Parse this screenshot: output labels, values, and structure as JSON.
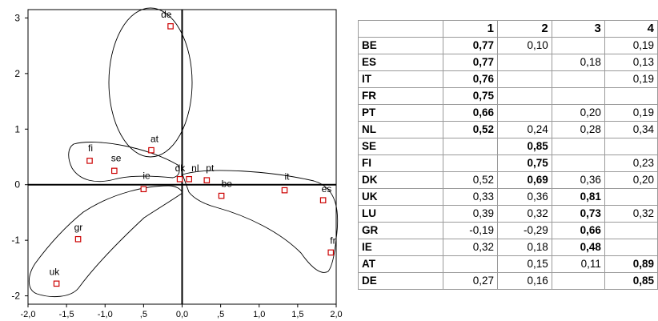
{
  "chart_data": {
    "type": "scatter",
    "title": "",
    "xlabel": "",
    "ylabel": "",
    "xlim": [
      -2.0,
      2.0
    ],
    "ylim": [
      -2.15,
      3.15
    ],
    "x_ticks": [
      -2.0,
      -1.5,
      -1.0,
      -0.5,
      0.0,
      0.5,
      1.0,
      1.5,
      2.0
    ],
    "x_tick_labels": [
      "-2,0",
      "-1,5",
      "-1,0",
      ",5",
      "0,0",
      ",5",
      "1,0",
      "1,5",
      "2,0"
    ],
    "y_ticks": [
      -2,
      -1,
      0,
      1,
      2,
      3
    ],
    "y_tick_labels": [
      "-2",
      "-1",
      "0",
      "1",
      "2",
      "3"
    ],
    "marker_color": "#cc0000",
    "points": [
      {
        "label": "de",
        "x": -0.15,
        "y": 2.85
      },
      {
        "label": "at",
        "x": -0.4,
        "y": 0.62
      },
      {
        "label": "fi",
        "x": -1.2,
        "y": 0.43
      },
      {
        "label": "se",
        "x": -0.88,
        "y": 0.25
      },
      {
        "label": "ie",
        "x": -0.5,
        "y": -0.08
      },
      {
        "label": "dk",
        "x": -0.03,
        "y": 0.1
      },
      {
        "label": "nl",
        "x": 0.09,
        "y": 0.1
      },
      {
        "label": "pt",
        "x": 0.32,
        "y": 0.08
      },
      {
        "label": "be",
        "x": 0.51,
        "y": -0.2
      },
      {
        "label": "it",
        "x": 1.33,
        "y": -0.1
      },
      {
        "label": "es",
        "x": 1.83,
        "y": -0.28
      },
      {
        "label": "fr",
        "x": 1.93,
        "y": -1.22
      },
      {
        "label": "gr",
        "x": -1.35,
        "y": -0.98
      },
      {
        "label": "uk",
        "x": -1.63,
        "y": -1.78
      }
    ]
  },
  "table": {
    "columns": [
      "",
      "1",
      "2",
      "3",
      "4"
    ],
    "rows": [
      {
        "label": "BE",
        "cells": [
          {
            "v": "0,77",
            "b": true
          },
          {
            "v": "0,10",
            "b": false
          },
          {
            "v": "",
            "b": false
          },
          {
            "v": "0,19",
            "b": false
          }
        ]
      },
      {
        "label": "ES",
        "cells": [
          {
            "v": "0,77",
            "b": true
          },
          {
            "v": "",
            "b": false
          },
          {
            "v": "0,18",
            "b": false
          },
          {
            "v": "0,13",
            "b": false
          }
        ]
      },
      {
        "label": "IT",
        "cells": [
          {
            "v": "0,76",
            "b": true
          },
          {
            "v": "",
            "b": false
          },
          {
            "v": "",
            "b": false
          },
          {
            "v": "0,19",
            "b": false
          }
        ]
      },
      {
        "label": "FR",
        "cells": [
          {
            "v": "0,75",
            "b": true
          },
          {
            "v": "",
            "b": false
          },
          {
            "v": "",
            "b": false
          },
          {
            "v": "",
            "b": false
          }
        ]
      },
      {
        "label": "PT",
        "cells": [
          {
            "v": "0,66",
            "b": true
          },
          {
            "v": "",
            "b": false
          },
          {
            "v": "0,20",
            "b": false
          },
          {
            "v": "0,19",
            "b": false
          }
        ]
      },
      {
        "label": "NL",
        "cells": [
          {
            "v": "0,52",
            "b": true
          },
          {
            "v": "0,24",
            "b": false
          },
          {
            "v": "0,28",
            "b": false
          },
          {
            "v": "0,34",
            "b": false
          }
        ]
      },
      {
        "label": "SE",
        "cells": [
          {
            "v": "",
            "b": false
          },
          {
            "v": "0,85",
            "b": true
          },
          {
            "v": "",
            "b": false
          },
          {
            "v": "",
            "b": false
          }
        ]
      },
      {
        "label": "FI",
        "cells": [
          {
            "v": "",
            "b": false
          },
          {
            "v": "0,75",
            "b": true
          },
          {
            "v": "",
            "b": false
          },
          {
            "v": "0,23",
            "b": false
          }
        ]
      },
      {
        "label": "DK",
        "cells": [
          {
            "v": "0,52",
            "b": false
          },
          {
            "v": "0,69",
            "b": true
          },
          {
            "v": "0,36",
            "b": false
          },
          {
            "v": "0,20",
            "b": false
          }
        ]
      },
      {
        "label": "UK",
        "cells": [
          {
            "v": "0,33",
            "b": false
          },
          {
            "v": "0,36",
            "b": false
          },
          {
            "v": "0,81",
            "b": true
          },
          {
            "v": "",
            "b": false
          }
        ]
      },
      {
        "label": "LU",
        "cells": [
          {
            "v": "0,39",
            "b": false
          },
          {
            "v": "0,32",
            "b": false
          },
          {
            "v": "0,73",
            "b": true
          },
          {
            "v": "0,32",
            "b": false
          }
        ]
      },
      {
        "label": "GR",
        "cells": [
          {
            "v": "-0,19",
            "b": false
          },
          {
            "v": "-0,29",
            "b": false
          },
          {
            "v": "0,66",
            "b": true
          },
          {
            "v": "",
            "b": false
          }
        ]
      },
      {
        "label": "IE",
        "cells": [
          {
            "v": "0,32",
            "b": false
          },
          {
            "v": "0,18",
            "b": false
          },
          {
            "v": "0,48",
            "b": true
          },
          {
            "v": "",
            "b": false
          }
        ]
      },
      {
        "label": "AT",
        "cells": [
          {
            "v": "",
            "b": false
          },
          {
            "v": "0,15",
            "b": false
          },
          {
            "v": "0,11",
            "b": false
          },
          {
            "v": "0,89",
            "b": true
          }
        ]
      },
      {
        "label": "DE",
        "cells": [
          {
            "v": "0,27",
            "b": false
          },
          {
            "v": "0,16",
            "b": false
          },
          {
            "v": "",
            "b": false
          },
          {
            "v": "0,85",
            "b": true
          }
        ]
      }
    ]
  }
}
